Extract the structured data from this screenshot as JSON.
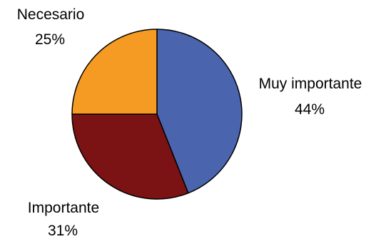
{
  "chart_data": {
    "type": "pie",
    "start_angle_deg": 0,
    "direction": "clockwise",
    "slices": [
      {
        "label": "Muy importante",
        "value": 44,
        "value_label": "44%",
        "color": "#4a64ae"
      },
      {
        "label": "Importante",
        "value": 31,
        "value_label": "31%",
        "color": "#7b1213"
      },
      {
        "label": "Necesario",
        "value": 25,
        "value_label": "25%",
        "color": "#f59a23"
      }
    ]
  }
}
